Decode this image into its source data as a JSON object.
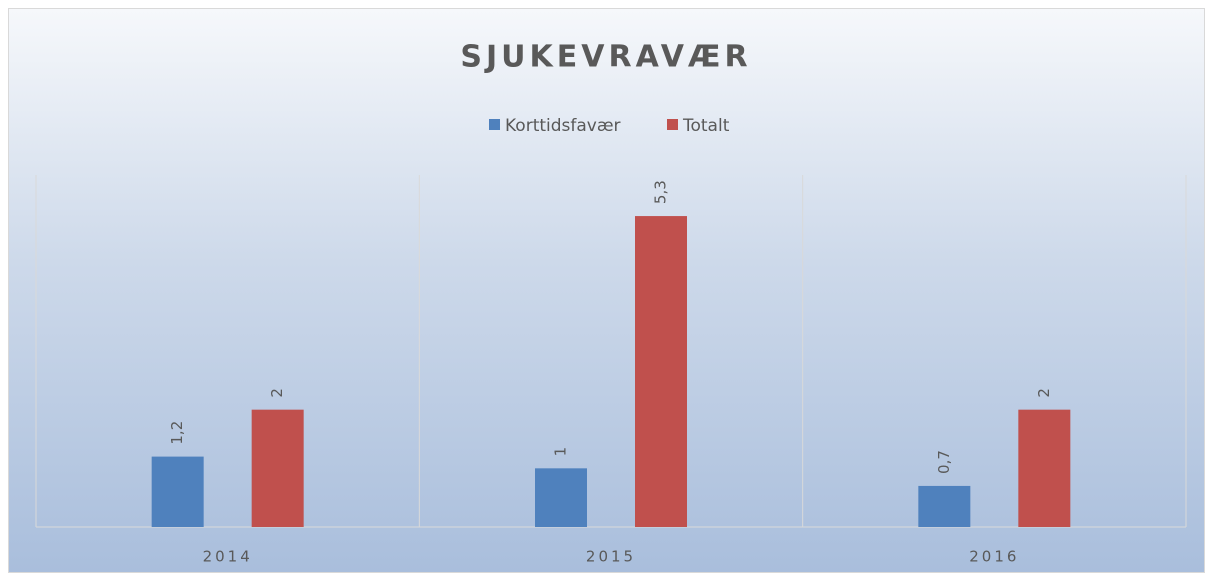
{
  "chart_data": {
    "type": "bar",
    "title": "SJUKEVRAVÆR",
    "categories": [
      "2014",
      "2015",
      "2016"
    ],
    "series": [
      {
        "name": "Korttidsfavær",
        "color": "#4f81bd",
        "values": [
          1.2,
          1,
          0.7
        ],
        "value_labels": [
          "1,2",
          "1",
          "0,7"
        ]
      },
      {
        "name": "Totalt",
        "color": "#c0504d",
        "values": [
          2,
          5.3,
          2
        ],
        "value_labels": [
          "2",
          "5,3",
          "2"
        ]
      }
    ],
    "ylim": [
      0,
      6
    ],
    "legend": "top"
  }
}
